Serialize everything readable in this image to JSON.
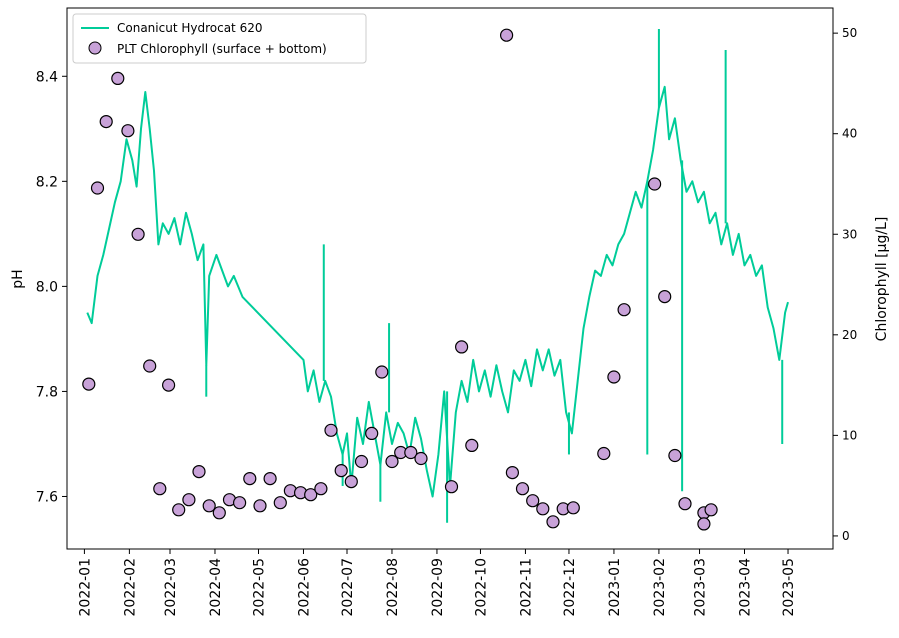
{
  "chart_data": {
    "type": "line+scatter",
    "title": "",
    "xlabel": "",
    "ylabel_left": "pH",
    "ylabel_right": "Chlorophyll [µg/L]",
    "x_ticks": [
      "2022-01",
      "2022-02",
      "2022-03",
      "2022-04",
      "2022-05",
      "2022-06",
      "2022-07",
      "2022-08",
      "2022-09",
      "2022-10",
      "2022-11",
      "2022-12",
      "2023-01",
      "2023-02",
      "2023-03",
      "2023-04",
      "2023-05"
    ],
    "x_range": [
      "2021-12-20",
      "2023-06-01"
    ],
    "y_left_ticks": [
      "7.6",
      "7.8",
      "8.0",
      "8.2",
      "8.4"
    ],
    "y_left_range": [
      7.5,
      8.53
    ],
    "y_right_ticks": [
      "0",
      "10",
      "20",
      "30",
      "40",
      "50"
    ],
    "y_right_range": [
      -1.3,
      52.5
    ],
    "legend_position": "upper-left",
    "colors": {
      "ph": "#00cc99",
      "chl_fill": "#c8a2d8",
      "chl_edge": "#000000"
    },
    "series": [
      {
        "name": "Conanicut Hydrocat 620",
        "kind": "line",
        "axis": "left",
        "points": [
          [
            "2022-01-03",
            7.95
          ],
          [
            "2022-01-06",
            7.93
          ],
          [
            "2022-01-10",
            8.02
          ],
          [
            "2022-01-14",
            8.06
          ],
          [
            "2022-01-18",
            8.11
          ],
          [
            "2022-01-22",
            8.16
          ],
          [
            "2022-01-26",
            8.2
          ],
          [
            "2022-01-30",
            8.28
          ],
          [
            "2022-02-03",
            8.24
          ],
          [
            "2022-02-06",
            8.19
          ],
          [
            "2022-02-09",
            8.3
          ],
          [
            "2022-02-12",
            8.37
          ],
          [
            "2022-02-15",
            8.3
          ],
          [
            "2022-02-18",
            8.22
          ],
          [
            "2022-02-21",
            8.08
          ],
          [
            "2022-02-24",
            8.12
          ],
          [
            "2022-02-28",
            8.1
          ],
          [
            "2022-03-04",
            8.13
          ],
          [
            "2022-03-08",
            8.08
          ],
          [
            "2022-03-12",
            8.14
          ],
          [
            "2022-03-16",
            8.1
          ],
          [
            "2022-03-20",
            8.05
          ],
          [
            "2022-03-24",
            8.08
          ],
          [
            "2022-03-26",
            7.85
          ],
          [
            "2022-03-28",
            8.02
          ],
          [
            "2022-04-02",
            8.06
          ],
          [
            "2022-04-06",
            8.03
          ],
          [
            "2022-04-10",
            8.0
          ],
          [
            "2022-04-14",
            8.02
          ],
          [
            "2022-04-20",
            7.98
          ],
          [
            "2022-06-01",
            7.86
          ],
          [
            "2022-06-04",
            7.8
          ],
          [
            "2022-06-08",
            7.84
          ],
          [
            "2022-06-12",
            7.78
          ],
          [
            "2022-06-16",
            7.82
          ],
          [
            "2022-06-20",
            7.79
          ],
          [
            "2022-06-24",
            7.72
          ],
          [
            "2022-06-28",
            7.68
          ],
          [
            "2022-07-01",
            7.72
          ],
          [
            "2022-07-04",
            7.62
          ],
          [
            "2022-07-08",
            7.75
          ],
          [
            "2022-07-12",
            7.7
          ],
          [
            "2022-07-16",
            7.78
          ],
          [
            "2022-07-20",
            7.72
          ],
          [
            "2022-07-24",
            7.66
          ],
          [
            "2022-07-28",
            7.76
          ],
          [
            "2022-08-01",
            7.7
          ],
          [
            "2022-08-05",
            7.74
          ],
          [
            "2022-08-09",
            7.72
          ],
          [
            "2022-08-13",
            7.68
          ],
          [
            "2022-08-17",
            7.75
          ],
          [
            "2022-08-21",
            7.71
          ],
          [
            "2022-08-25",
            7.65
          ],
          [
            "2022-08-29",
            7.6
          ],
          [
            "2022-09-02",
            7.68
          ],
          [
            "2022-09-06",
            7.8
          ],
          [
            "2022-09-10",
            7.62
          ],
          [
            "2022-09-14",
            7.76
          ],
          [
            "2022-09-18",
            7.82
          ],
          [
            "2022-09-22",
            7.78
          ],
          [
            "2022-09-26",
            7.86
          ],
          [
            "2022-09-30",
            7.8
          ],
          [
            "2022-10-04",
            7.84
          ],
          [
            "2022-10-08",
            7.79
          ],
          [
            "2022-10-12",
            7.85
          ],
          [
            "2022-10-16",
            7.8
          ],
          [
            "2022-10-20",
            7.76
          ],
          [
            "2022-10-24",
            7.84
          ],
          [
            "2022-10-28",
            7.82
          ],
          [
            "2022-11-01",
            7.86
          ],
          [
            "2022-11-05",
            7.81
          ],
          [
            "2022-11-09",
            7.88
          ],
          [
            "2022-11-13",
            7.84
          ],
          [
            "2022-11-17",
            7.88
          ],
          [
            "2022-11-21",
            7.83
          ],
          [
            "2022-11-25",
            7.86
          ],
          [
            "2022-11-29",
            7.76
          ],
          [
            "2022-12-03",
            7.72
          ],
          [
            "2022-12-07",
            7.82
          ],
          [
            "2022-12-11",
            7.92
          ],
          [
            "2022-12-15",
            7.98
          ],
          [
            "2022-12-19",
            8.03
          ],
          [
            "2022-12-23",
            8.02
          ],
          [
            "2022-12-27",
            8.06
          ],
          [
            "2022-12-31",
            8.04
          ],
          [
            "2023-01-04",
            8.08
          ],
          [
            "2023-01-08",
            8.1
          ],
          [
            "2023-01-12",
            8.14
          ],
          [
            "2023-01-16",
            8.18
          ],
          [
            "2023-01-20",
            8.15
          ],
          [
            "2023-01-24",
            8.2
          ],
          [
            "2023-01-28",
            8.26
          ],
          [
            "2023-02-01",
            8.34
          ],
          [
            "2023-02-05",
            8.38
          ],
          [
            "2023-02-08",
            8.28
          ],
          [
            "2023-02-12",
            8.32
          ],
          [
            "2023-02-16",
            8.24
          ],
          [
            "2023-02-20",
            8.18
          ],
          [
            "2023-02-24",
            8.2
          ],
          [
            "2023-02-28",
            8.16
          ],
          [
            "2023-03-04",
            8.18
          ],
          [
            "2023-03-08",
            8.12
          ],
          [
            "2023-03-12",
            8.14
          ],
          [
            "2023-03-16",
            8.08
          ],
          [
            "2023-03-20",
            8.12
          ],
          [
            "2023-03-24",
            8.06
          ],
          [
            "2023-03-28",
            8.1
          ],
          [
            "2023-04-01",
            8.04
          ],
          [
            "2023-04-05",
            8.06
          ],
          [
            "2023-04-09",
            8.02
          ],
          [
            "2023-04-13",
            8.04
          ],
          [
            "2023-04-17",
            7.96
          ],
          [
            "2023-04-21",
            7.92
          ],
          [
            "2023-04-25",
            7.86
          ],
          [
            "2023-04-29",
            7.95
          ],
          [
            "2023-05-01",
            7.97
          ]
        ],
        "spikes": [
          [
            "2022-03-26",
            7.79
          ],
          [
            "2022-06-15",
            8.08
          ],
          [
            "2022-06-28",
            7.62
          ],
          [
            "2022-07-24",
            7.59
          ],
          [
            "2022-07-30",
            7.93
          ],
          [
            "2022-09-08",
            7.55
          ],
          [
            "2022-12-01",
            7.68
          ],
          [
            "2023-01-24",
            7.68
          ],
          [
            "2023-02-01",
            8.49
          ],
          [
            "2023-02-17",
            7.61
          ],
          [
            "2023-03-19",
            8.45
          ],
          [
            "2023-04-27",
            7.7
          ]
        ]
      },
      {
        "name": "PLT Chlorophyll (surface + bottom)",
        "kind": "scatter",
        "axis": "right",
        "points": [
          [
            "2022-01-04",
            15.1
          ],
          [
            "2022-01-10",
            34.6
          ],
          [
            "2022-01-16",
            41.2
          ],
          [
            "2022-01-24",
            45.5
          ],
          [
            "2022-01-31",
            40.3
          ],
          [
            "2022-02-07",
            30.0
          ],
          [
            "2022-02-15",
            16.9
          ],
          [
            "2022-02-22",
            4.7
          ],
          [
            "2022-02-28",
            15.0
          ],
          [
            "2022-03-07",
            2.6
          ],
          [
            "2022-03-14",
            3.6
          ],
          [
            "2022-03-21",
            6.4
          ],
          [
            "2022-03-28",
            3.0
          ],
          [
            "2022-04-04",
            2.3
          ],
          [
            "2022-04-11",
            3.6
          ],
          [
            "2022-04-18",
            3.3
          ],
          [
            "2022-04-25",
            5.7
          ],
          [
            "2022-05-02",
            3.0
          ],
          [
            "2022-05-09",
            5.7
          ],
          [
            "2022-05-16",
            3.3
          ],
          [
            "2022-05-23",
            4.5
          ],
          [
            "2022-05-30",
            4.3
          ],
          [
            "2022-06-06",
            4.1
          ],
          [
            "2022-06-13",
            4.7
          ],
          [
            "2022-06-20",
            10.5
          ],
          [
            "2022-06-27",
            6.5
          ],
          [
            "2022-07-04",
            5.4
          ],
          [
            "2022-07-11",
            7.4
          ],
          [
            "2022-07-18",
            10.2
          ],
          [
            "2022-07-25",
            16.3
          ],
          [
            "2022-08-01",
            7.4
          ],
          [
            "2022-08-07",
            8.3
          ],
          [
            "2022-08-14",
            8.3
          ],
          [
            "2022-08-21",
            7.7
          ],
          [
            "2022-09-11",
            4.9
          ],
          [
            "2022-09-18",
            18.8
          ],
          [
            "2022-09-25",
            9.0
          ],
          [
            "2022-10-19",
            49.8
          ],
          [
            "2022-10-23",
            6.3
          ],
          [
            "2022-10-30",
            4.7
          ],
          [
            "2022-11-06",
            3.5
          ],
          [
            "2022-11-13",
            2.7
          ],
          [
            "2022-11-20",
            1.4
          ],
          [
            "2022-11-27",
            2.7
          ],
          [
            "2022-12-04",
            2.8
          ],
          [
            "2022-12-25",
            8.2
          ],
          [
            "2023-01-01",
            15.8
          ],
          [
            "2023-01-08",
            22.5
          ],
          [
            "2023-01-29",
            35.0
          ],
          [
            "2023-02-05",
            23.8
          ],
          [
            "2023-02-12",
            8.0
          ],
          [
            "2023-02-19",
            3.2
          ],
          [
            "2023-03-04",
            2.3
          ],
          [
            "2023-03-04",
            1.2
          ],
          [
            "2023-03-09",
            2.6
          ]
        ]
      }
    ]
  }
}
